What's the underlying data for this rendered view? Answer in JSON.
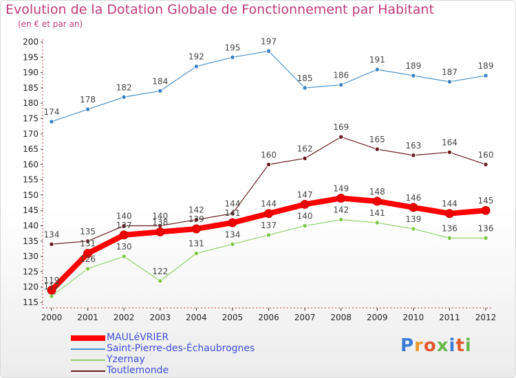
{
  "title": "Evolution de la Dotation Globale de Fonctionnement par Habitant",
  "subtitle": "(en € et par an)",
  "logo": {
    "text": "Proxiti",
    "colors": [
      "#3a7bd5",
      "#e89a2c",
      "#e2572c",
      "#67b84a",
      "#3a7bd5",
      "#e2572c",
      "#67b84a"
    ]
  },
  "chart_data": {
    "type": "line",
    "title": "Evolution de la Dotation Globale de Fonctionnement par Habitant",
    "ylabel": "(en € et par an)",
    "xlabel": "",
    "ylim": [
      115,
      200
    ],
    "yticks": [
      115,
      120,
      125,
      130,
      135,
      140,
      145,
      150,
      155,
      160,
      165,
      170,
      175,
      180,
      185,
      190,
      195,
      200
    ],
    "x": [
      "2000",
      "2001",
      "2002",
      "2003",
      "2004",
      "2005",
      "2006",
      "2007",
      "2008",
      "2009",
      "2010",
      "2011",
      "2012"
    ],
    "grid": false,
    "series": [
      {
        "name": "Saint-Pierre-des-Échaubrognes",
        "color": "#4a90c8",
        "dot": "#3a82c4",
        "values": [
          174,
          178,
          182,
          184,
          192,
          195,
          197,
          185,
          186,
          191,
          189,
          187,
          189
        ]
      },
      {
        "name": "Toutlemonde",
        "color": "#6b1c22",
        "dot": "#6b1c22",
        "values": [
          134,
          135,
          140,
          140,
          142,
          144,
          160,
          162,
          169,
          165,
          163,
          164,
          160
        ]
      },
      {
        "name": "Yzernay",
        "color": "#8fd16a",
        "dot": "#7cc646",
        "values": [
          117,
          126,
          130,
          122,
          131,
          134,
          137,
          140,
          142,
          141,
          139,
          136,
          136
        ]
      },
      {
        "name": "MAULéVRIER",
        "color": "#ff0000",
        "dot": "#ee0000",
        "values": [
          119,
          131,
          137,
          138,
          139,
          141,
          144,
          147,
          149,
          148,
          146,
          144,
          145
        ]
      }
    ],
    "legend": [
      {
        "name": "MAULéVRIER",
        "color": "#ff0000",
        "style": "thick"
      },
      {
        "name": "Saint-Pierre-des-Échaubrognes",
        "color": "#4a90c8",
        "style": "thin"
      },
      {
        "name": "Yzernay",
        "color": "#8fd16a",
        "style": "thin"
      },
      {
        "name": "Toutlemonde",
        "color": "#6b1c22",
        "style": "thin"
      }
    ],
    "legend_position": "bottom-left"
  }
}
